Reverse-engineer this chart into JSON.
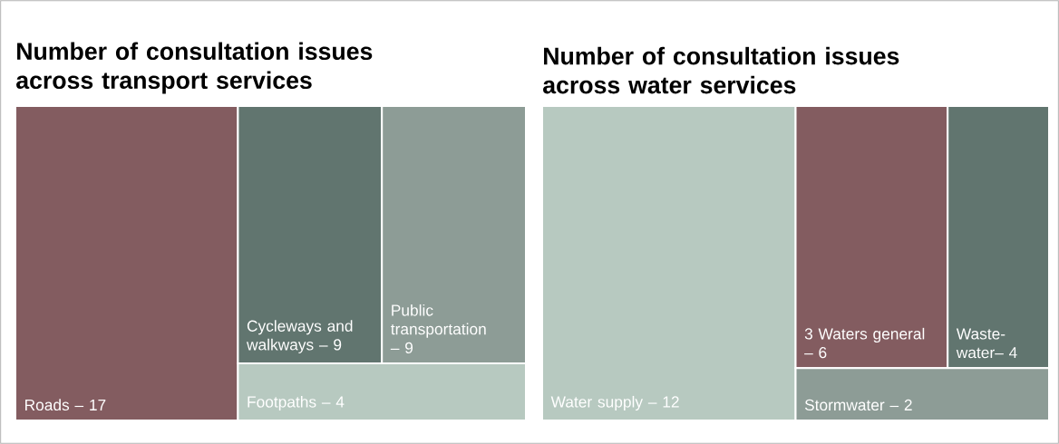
{
  "chart_data": [
    {
      "type": "other",
      "title": "Number of consultation issues across transport services",
      "categories": [
        "Roads –",
        "Cycleways and walkways –",
        "Public transportation –",
        "Footpaths –"
      ],
      "values": [
        17,
        9,
        9,
        4
      ],
      "data_labels": true,
      "colors": [
        "#835c60",
        "#61756f",
        "#8d9c96",
        "#b7c9c0"
      ]
    },
    {
      "type": "other",
      "title": "Number of consultation issues across water services",
      "categories": [
        "Water supply –",
        "3 Waters general –",
        "Waste-water–",
        "Stormwater –"
      ],
      "values": [
        12,
        6,
        4,
        2
      ],
      "data_labels": true,
      "colors": [
        "#b7c9c0",
        "#835c60",
        "#61756f",
        "#8d9c96"
      ]
    }
  ]
}
